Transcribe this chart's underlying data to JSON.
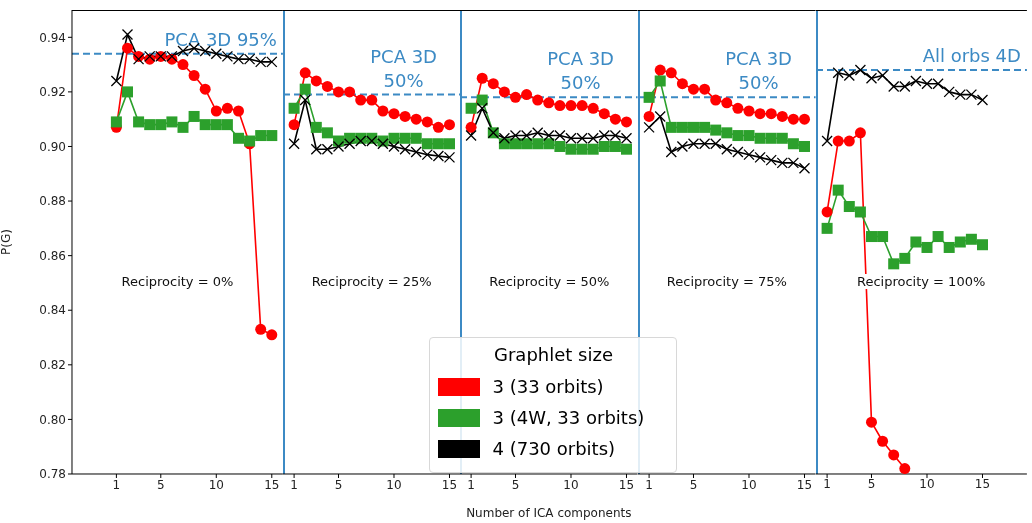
{
  "chart_data": [
    {
      "type": "line",
      "ylabel": "P(G)",
      "x": [
        1,
        2,
        3,
        4,
        5,
        6,
        7,
        8,
        9,
        10,
        11,
        12,
        13,
        14,
        15
      ],
      "xlim": [
        -3,
        16
      ],
      "xticks": [
        1,
        5,
        10,
        15
      ],
      "ylim": [
        0.78,
        0.95
      ],
      "yticks": [
        {
          "value": 0.78,
          "label": "0.78"
        },
        {
          "value": 0.8,
          "label": "0.80"
        },
        {
          "value": 0.82,
          "label": "0.82"
        },
        {
          "value": 0.84,
          "label": "0.84"
        },
        {
          "value": 0.86,
          "label": "0.86"
        },
        {
          "value": 0.88,
          "label": "0.88"
        },
        {
          "value": 0.9,
          "label": "0.90"
        },
        {
          "value": 0.92,
          "label": "0.92"
        },
        {
          "value": 0.94,
          "label": "0.94"
        }
      ],
      "grid": false,
      "annotations": [
        "Reciprocity = 0%"
      ],
      "ref_lines": [
        {
          "axis": "y",
          "value": 0.934,
          "label": "PCA 3D 95%",
          "color": "#3c8ac4",
          "line_style": "dashed"
        }
      ],
      "series": [
        {
          "color": "#ff0000",
          "marker": "circle",
          "values": [
            0.907,
            0.936,
            0.933,
            0.932,
            0.933,
            0.932,
            0.93,
            0.926,
            0.921,
            0.913,
            0.914,
            0.913,
            0.901,
            0.833,
            0.831
          ]
        },
        {
          "color": "#2ca02c",
          "marker": "square",
          "values": [
            0.909,
            0.92,
            0.909,
            0.908,
            0.908,
            0.909,
            0.907,
            0.911,
            0.908,
            0.908,
            0.908,
            0.903,
            0.902,
            0.904,
            0.904
          ]
        },
        {
          "color": "#000000",
          "marker": "cross",
          "values": [
            0.924,
            0.941,
            0.932,
            0.933,
            0.933,
            0.933,
            0.935,
            0.936,
            0.935,
            0.934,
            0.933,
            0.932,
            0.932,
            0.931,
            0.931
          ]
        }
      ]
    },
    {
      "type": "line",
      "tick_labels": "x",
      "x": [
        1,
        2,
        3,
        4,
        5,
        6,
        7,
        8,
        9,
        10,
        11,
        12,
        13,
        14,
        15
      ],
      "xlim": [
        0,
        16
      ],
      "xticks": [
        1,
        5,
        10,
        15
      ],
      "ylim": [
        0.78,
        0.95
      ],
      "grid": false,
      "annotations": [
        "Reciprocity = 25%"
      ],
      "ref_lines": [
        {
          "axis": "y",
          "value": 0.919,
          "label": "PCA 3D\n50%",
          "color": "#3c8ac4",
          "line_style": "dashed"
        }
      ],
      "series": [
        {
          "color": "#ff0000",
          "marker": "circle",
          "values": [
            0.908,
            0.927,
            0.924,
            0.922,
            0.92,
            0.92,
            0.917,
            0.917,
            0.913,
            0.912,
            0.911,
            0.91,
            0.909,
            0.907,
            0.908
          ]
        },
        {
          "color": "#2ca02c",
          "marker": "square",
          "values": [
            0.914,
            0.921,
            0.907,
            0.905,
            0.902,
            0.903,
            0.903,
            0.903,
            0.902,
            0.903,
            0.903,
            0.903,
            0.901,
            0.901,
            0.901
          ]
        },
        {
          "color": "#000000",
          "marker": "cross",
          "values": [
            0.901,
            0.917,
            0.899,
            0.899,
            0.9,
            0.901,
            0.902,
            0.902,
            0.901,
            0.9,
            0.899,
            0.898,
            0.897,
            0.8965,
            0.896
          ]
        }
      ]
    },
    {
      "type": "line",
      "tick_labels": "x",
      "xlabel": "Number of ICA components",
      "legend": "bottom",
      "legend_title": "Graphlet size",
      "x": [
        1,
        2,
        3,
        4,
        5,
        6,
        7,
        8,
        9,
        10,
        11,
        12,
        13,
        14,
        15
      ],
      "xlim": [
        0,
        16
      ],
      "xticks": [
        1,
        5,
        10,
        15
      ],
      "ylim": [
        0.78,
        0.95
      ],
      "grid": false,
      "annotations": [
        "Reciprocity = 50%"
      ],
      "ref_lines": [
        {
          "axis": "y",
          "value": 0.918,
          "label": "PCA 3D\n50%",
          "color": "#3c8ac4",
          "line_style": "dashed"
        }
      ],
      "series": [
        {
          "name": "3 (33 orbits)",
          "color": "#ff0000",
          "marker": "circle",
          "values": [
            0.907,
            0.925,
            0.923,
            0.92,
            0.918,
            0.919,
            0.917,
            0.916,
            0.915,
            0.915,
            0.915,
            0.914,
            0.912,
            0.91,
            0.909
          ]
        },
        {
          "name": "3 (4W, 33 orbits)",
          "color": "#2ca02c",
          "marker": "square",
          "values": [
            0.914,
            0.917,
            0.905,
            0.901,
            0.901,
            0.901,
            0.901,
            0.901,
            0.9,
            0.899,
            0.899,
            0.899,
            0.9,
            0.9,
            0.899
          ]
        },
        {
          "name": "4 (730 orbits)",
          "color": "#000000",
          "marker": "cross",
          "values": [
            0.904,
            0.914,
            0.905,
            0.903,
            0.904,
            0.904,
            0.905,
            0.904,
            0.904,
            0.903,
            0.903,
            0.903,
            0.904,
            0.904,
            0.903
          ]
        }
      ]
    },
    {
      "type": "line",
      "tick_labels": "x",
      "x": [
        1,
        2,
        3,
        4,
        5,
        6,
        7,
        8,
        9,
        10,
        11,
        12,
        13,
        14,
        15
      ],
      "xlim": [
        0,
        16
      ],
      "xticks": [
        1,
        5,
        10,
        15
      ],
      "ylim": [
        0.78,
        0.95
      ],
      "grid": false,
      "annotations": [
        "Reciprocity = 75%"
      ],
      "ref_lines": [
        {
          "axis": "y",
          "value": 0.918,
          "label": "PCA 3D\n50%",
          "color": "#3c8ac4",
          "line_style": "dashed"
        }
      ],
      "series": [
        {
          "color": "#ff0000",
          "marker": "circle",
          "values": [
            0.911,
            0.928,
            0.927,
            0.923,
            0.921,
            0.921,
            0.917,
            0.916,
            0.914,
            0.913,
            0.912,
            0.912,
            0.911,
            0.91,
            0.91
          ]
        },
        {
          "color": "#2ca02c",
          "marker": "square",
          "values": [
            0.918,
            0.924,
            0.907,
            0.907,
            0.907,
            0.907,
            0.906,
            0.905,
            0.904,
            0.904,
            0.903,
            0.903,
            0.903,
            0.901,
            0.9
          ]
        },
        {
          "color": "#000000",
          "marker": "cross",
          "values": [
            0.907,
            0.911,
            0.898,
            0.9,
            0.901,
            0.901,
            0.901,
            0.899,
            0.898,
            0.897,
            0.896,
            0.895,
            0.894,
            0.894,
            0.892
          ]
        }
      ]
    },
    {
      "type": "line",
      "tick_labels": "x",
      "x": [
        1,
        2,
        3,
        4,
        5,
        6,
        7,
        8,
        9,
        10,
        11,
        12,
        13,
        14,
        15
      ],
      "xlim": [
        0,
        19
      ],
      "xticks": [
        1,
        5,
        10,
        15
      ],
      "ylim": [
        0.78,
        0.95
      ],
      "grid": false,
      "annotations": [
        "Reciprocity = 100%"
      ],
      "ref_lines": [
        {
          "axis": "y",
          "value": 0.928,
          "label": "All orbs 4D",
          "color": "#3c8ac4",
          "line_style": "dashed"
        }
      ],
      "series": [
        {
          "color": "#ff0000",
          "marker": "circle",
          "values": [
            0.876,
            0.902,
            0.902,
            0.905,
            0.799,
            0.792,
            0.787,
            0.782,
            null,
            null,
            null,
            null,
            null,
            null,
            null
          ]
        },
        {
          "color": "#2ca02c",
          "marker": "square",
          "values": [
            0.87,
            0.884,
            0.878,
            0.876,
            0.867,
            0.867,
            0.857,
            0.859,
            0.865,
            0.863,
            0.867,
            0.863,
            0.865,
            0.866,
            0.864
          ]
        },
        {
          "color": "#000000",
          "marker": "cross",
          "values": [
            0.902,
            0.927,
            0.926,
            0.928,
            0.925,
            0.926,
            0.922,
            0.922,
            0.924,
            0.923,
            0.923,
            0.92,
            0.919,
            0.919,
            0.917
          ]
        }
      ]
    }
  ]
}
